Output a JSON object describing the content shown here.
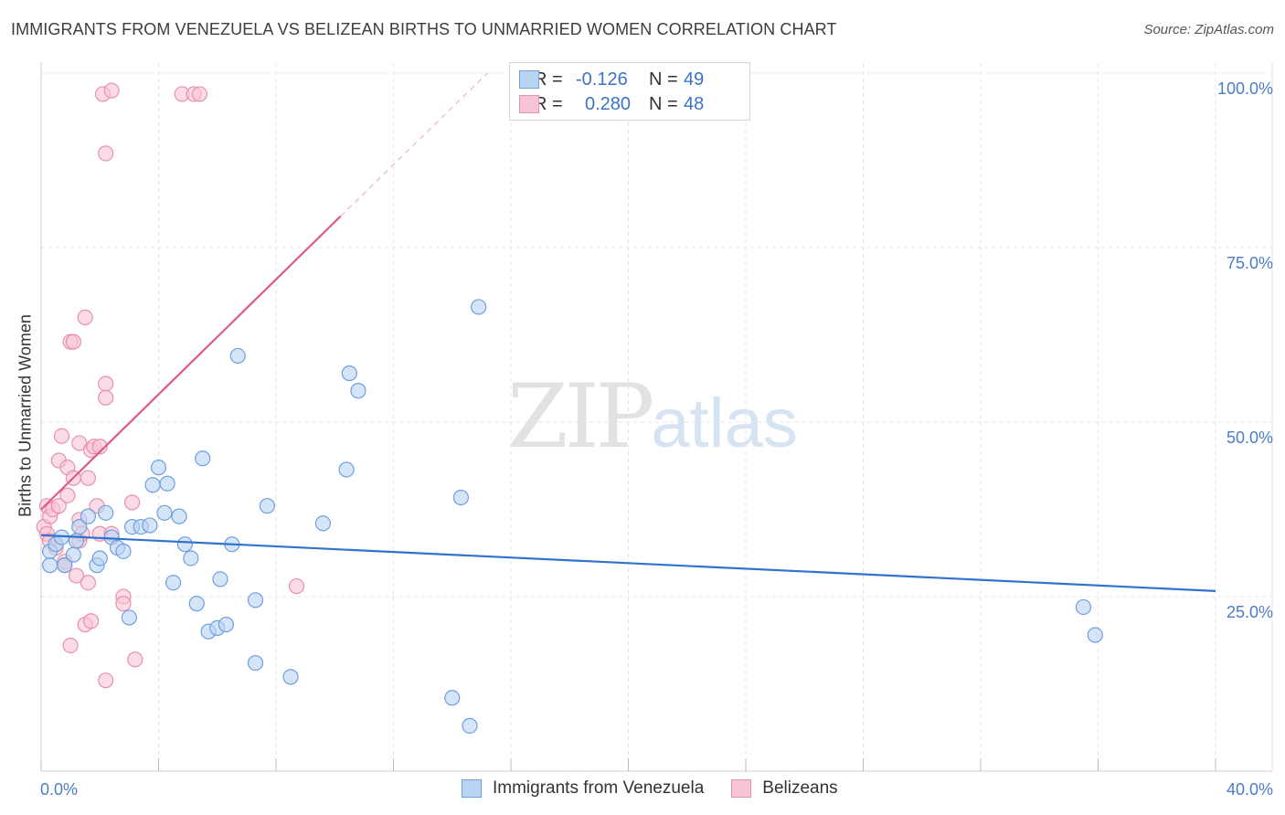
{
  "header": {
    "title": "IMMIGRANTS FROM VENEZUELA VS BELIZEAN BIRTHS TO UNMARRIED WOMEN CORRELATION CHART",
    "source": "Source: ZipAtlas.com"
  },
  "watermark": {
    "zip": "ZIP",
    "atlas": "atlas"
  },
  "legend": {
    "rows": [
      {
        "r_label": "R =",
        "r_value": "-0.126",
        "n_label": "N =",
        "n_value": "49"
      },
      {
        "r_label": "R =",
        "r_value": "0.280",
        "n_label": "N =",
        "n_value": "48"
      }
    ]
  },
  "bottom_legend": {
    "items": [
      {
        "label": "Immigrants from Venezuela"
      },
      {
        "label": "Belizeans"
      }
    ]
  },
  "colors": {
    "blue_fill": "#b9d3f3",
    "blue_stroke": "#6f9fdc",
    "blue_line": "#2f72cf",
    "pink_fill": "#f8c5d5",
    "pink_stroke": "#e890ad",
    "pink_line": "#e05a87",
    "grid": "#e4e4e4",
    "axis_text": "#4a7cc9"
  },
  "chart_data": {
    "type": "scatter",
    "title": "IMMIGRANTS FROM VENEZUELA VS BELIZEAN BIRTHS TO UNMARRIED WOMEN CORRELATION CHART",
    "xlabel": "",
    "ylabel": "Births to Unmarried Women",
    "xlim": [
      0,
      40
    ],
    "ylim": [
      0,
      100
    ],
    "x_tick_labels": [
      "0.0%",
      "40.0%"
    ],
    "y_ticks": [
      25,
      50,
      75,
      100
    ],
    "y_tick_labels": [
      "25.0%",
      "50.0%",
      "75.0%",
      "100.0%"
    ],
    "grid": true,
    "series": [
      {
        "name": "Immigrants from Venezuela",
        "r": -0.126,
        "n": 49,
        "trend": {
          "x": [
            0,
            40
          ],
          "y": [
            33.8,
            25.8
          ]
        },
        "points": [
          [
            0.3,
            29.5
          ],
          [
            0.3,
            31.5
          ],
          [
            0.5,
            32.5
          ],
          [
            0.7,
            33.5
          ],
          [
            0.8,
            29.5
          ],
          [
            1.1,
            31.0
          ],
          [
            1.2,
            33.0
          ],
          [
            1.3,
            35.0
          ],
          [
            1.6,
            36.5
          ],
          [
            1.9,
            29.5
          ],
          [
            2.0,
            30.5
          ],
          [
            2.2,
            37.0
          ],
          [
            2.4,
            33.5
          ],
          [
            2.6,
            32.0
          ],
          [
            2.8,
            31.5
          ],
          [
            3.0,
            22.0
          ],
          [
            3.1,
            35.0
          ],
          [
            3.4,
            35.0
          ],
          [
            3.7,
            35.2
          ],
          [
            3.8,
            41.0
          ],
          [
            4.0,
            43.5
          ],
          [
            4.2,
            37.0
          ],
          [
            4.3,
            41.2
          ],
          [
            4.5,
            27.0
          ],
          [
            4.7,
            36.5
          ],
          [
            4.9,
            32.5
          ],
          [
            5.1,
            30.5
          ],
          [
            5.3,
            24.0
          ],
          [
            5.5,
            44.8
          ],
          [
            5.7,
            20.0
          ],
          [
            6.0,
            20.5
          ],
          [
            6.1,
            27.5
          ],
          [
            6.3,
            21.0
          ],
          [
            6.5,
            32.5
          ],
          [
            6.7,
            59.5
          ],
          [
            7.3,
            24.5
          ],
          [
            7.3,
            15.5
          ],
          [
            7.7,
            38.0
          ],
          [
            8.5,
            13.5
          ],
          [
            9.6,
            35.5
          ],
          [
            10.4,
            43.2
          ],
          [
            10.5,
            57.0
          ],
          [
            10.8,
            54.5
          ],
          [
            14.0,
            10.5
          ],
          [
            14.3,
            39.2
          ],
          [
            14.6,
            6.5
          ],
          [
            14.9,
            66.5
          ],
          [
            35.5,
            23.5
          ],
          [
            35.9,
            19.5
          ]
        ]
      },
      {
        "name": "Belizeans",
        "r": 0.28,
        "n": 48,
        "trend": {
          "x": [
            0,
            10.2
          ],
          "y": [
            37.5,
            79.5
          ]
        },
        "trend_dashed": {
          "x": [
            10.2,
            15.2
          ],
          "y": [
            79.5,
            100
          ]
        },
        "points": [
          [
            0.1,
            35.0
          ],
          [
            0.2,
            34.0
          ],
          [
            0.2,
            38.0
          ],
          [
            0.3,
            36.5
          ],
          [
            0.3,
            33.0
          ],
          [
            0.4,
            37.5
          ],
          [
            0.5,
            32.0
          ],
          [
            0.6,
            38.0
          ],
          [
            0.6,
            44.5
          ],
          [
            0.7,
            48.0
          ],
          [
            0.8,
            30.0
          ],
          [
            0.8,
            29.5
          ],
          [
            0.9,
            43.5
          ],
          [
            0.9,
            39.5
          ],
          [
            1.0,
            61.5
          ],
          [
            1.0,
            18.0
          ],
          [
            1.1,
            42.0
          ],
          [
            1.1,
            61.5
          ],
          [
            1.2,
            28.0
          ],
          [
            1.3,
            36.0
          ],
          [
            1.3,
            33.0
          ],
          [
            1.3,
            47.0
          ],
          [
            1.4,
            34.0
          ],
          [
            1.5,
            65.0
          ],
          [
            1.5,
            21.0
          ],
          [
            1.6,
            42.0
          ],
          [
            1.6,
            27.0
          ],
          [
            1.7,
            46.0
          ],
          [
            1.7,
            21.5
          ],
          [
            1.8,
            46.5
          ],
          [
            1.9,
            38.0
          ],
          [
            2.0,
            34.0
          ],
          [
            2.0,
            46.5
          ],
          [
            2.2,
            55.5
          ],
          [
            2.2,
            53.5
          ],
          [
            2.2,
            13.0
          ],
          [
            2.4,
            34.0
          ],
          [
            2.1,
            97.0
          ],
          [
            2.2,
            88.5
          ],
          [
            2.4,
            97.5
          ],
          [
            2.8,
            25.0
          ],
          [
            2.8,
            24.0
          ],
          [
            3.1,
            38.5
          ],
          [
            3.2,
            16.0
          ],
          [
            4.8,
            97.0
          ],
          [
            5.2,
            97.0
          ],
          [
            5.4,
            97.0
          ],
          [
            8.7,
            26.5
          ]
        ]
      }
    ]
  }
}
